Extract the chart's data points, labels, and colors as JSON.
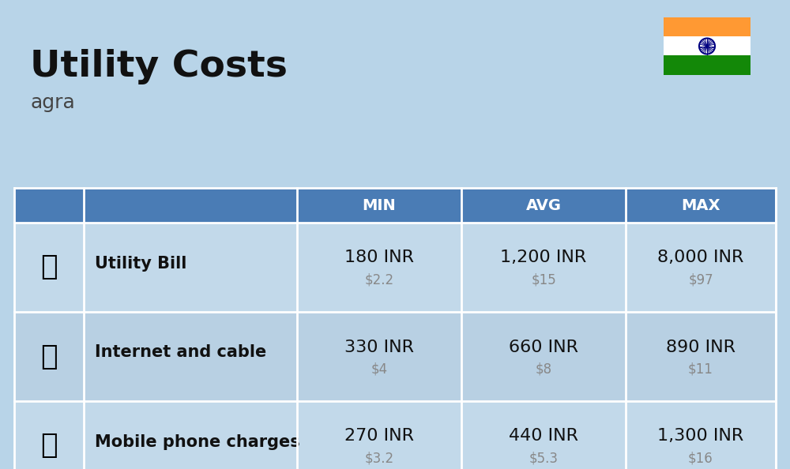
{
  "title": "Utility Costs",
  "subtitle": "agra",
  "background_color": "#b8d4e8",
  "header_bg_color": "#4a7cb5",
  "header_text_color": "#ffffff",
  "row_bg_even": "#c2d9ea",
  "row_bg_odd": "#b8d0e3",
  "divider_color": "#ffffff",
  "columns": [
    "MIN",
    "AVG",
    "MAX"
  ],
  "rows": [
    {
      "label": "Utility Bill",
      "min_inr": "180 INR",
      "min_usd": "$2.2",
      "avg_inr": "1,200 INR",
      "avg_usd": "$15",
      "max_inr": "8,000 INR",
      "max_usd": "$97",
      "icon": "⚡"
    },
    {
      "label": "Internet and cable",
      "min_inr": "330 INR",
      "min_usd": "$4",
      "avg_inr": "660 INR",
      "avg_usd": "$8",
      "max_inr": "890 INR",
      "max_usd": "$11",
      "icon": "📡"
    },
    {
      "label": "Mobile phone charges",
      "min_inr": "270 INR",
      "min_usd": "$3.2",
      "avg_inr": "440 INR",
      "avg_usd": "$5.3",
      "max_inr": "1,300 INR",
      "max_usd": "$16",
      "icon": "📱"
    }
  ],
  "flag_colors": [
    "#FF9933",
    "#ffffff",
    "#138808"
  ],
  "flag_ashoka_color": "#000080"
}
